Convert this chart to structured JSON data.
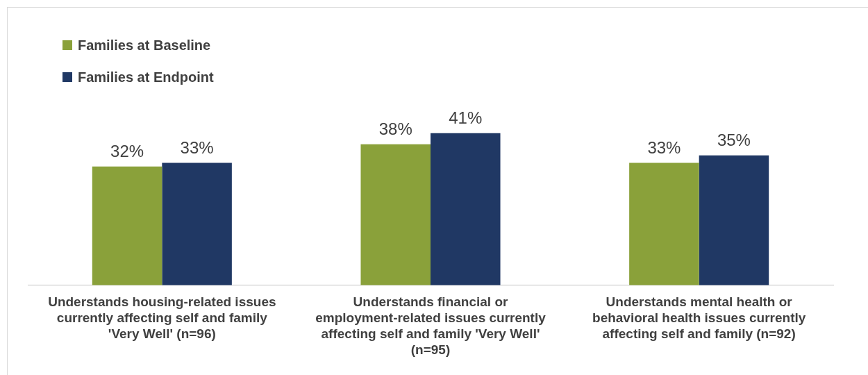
{
  "chart_data": {
    "type": "bar",
    "categories": [
      "Understands housing-related issues currently affecting self and family 'Very Well' (n=96)",
      "Understands financial or employment-related issues currently affecting self and family 'Very Well' (n=95)",
      "Understands mental health or behavioral health issues currently affecting self and family (n=92)"
    ],
    "series": [
      {
        "name": "Families at Baseline",
        "color": "#8aa13a",
        "values": [
          32,
          38,
          33
        ],
        "value_labels": [
          "32%",
          "38%",
          "33%"
        ]
      },
      {
        "name": "Families at Endpoint",
        "color": "#203864",
        "values": [
          33,
          41,
          35
        ],
        "value_labels": [
          "33%",
          "41%",
          "35%"
        ]
      }
    ],
    "ylim": [
      0,
      75
    ],
    "legend": "top left"
  }
}
